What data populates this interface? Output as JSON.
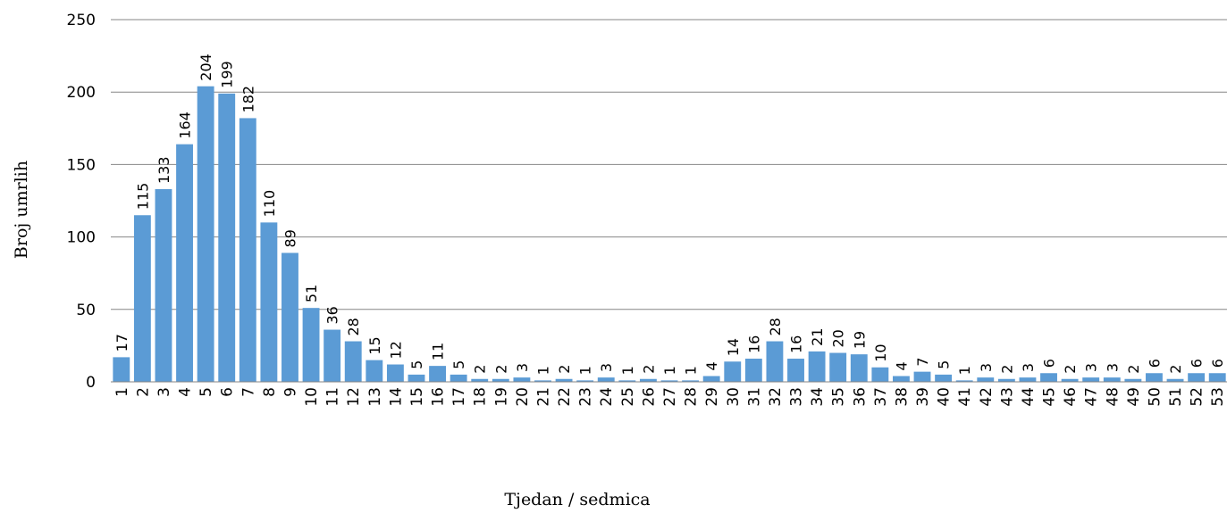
{
  "chart_data": {
    "type": "bar",
    "title": "",
    "xlabel": "Tjedan / sedmica",
    "ylabel": "Broj umrlih",
    "ylim": [
      0,
      250
    ],
    "yticks": [
      0,
      50,
      100,
      150,
      200,
      250
    ],
    "grid": true,
    "legend": "none",
    "bar_color": "#5B9BD5",
    "categories": [
      "1",
      "2",
      "3",
      "4",
      "5",
      "6",
      "7",
      "8",
      "9",
      "10",
      "11",
      "12",
      "13",
      "14",
      "15",
      "16",
      "17",
      "18",
      "19",
      "20",
      "21",
      "22",
      "23",
      "24",
      "25",
      "26",
      "27",
      "28",
      "29",
      "30",
      "31",
      "32",
      "33",
      "34",
      "35",
      "36",
      "37",
      "38",
      "39",
      "40",
      "41",
      "42",
      "43",
      "44",
      "45",
      "46",
      "47",
      "48",
      "49",
      "50",
      "51",
      "52",
      "53"
    ],
    "values": [
      17,
      115,
      133,
      164,
      204,
      199,
      182,
      110,
      89,
      51,
      36,
      28,
      15,
      12,
      5,
      11,
      5,
      2,
      2,
      3,
      1,
      2,
      1,
      3,
      1,
      2,
      1,
      1,
      4,
      14,
      16,
      28,
      16,
      21,
      20,
      19,
      10,
      4,
      7,
      5,
      1,
      3,
      2,
      3,
      6,
      2,
      3,
      3,
      2,
      6,
      2,
      6,
      6
    ]
  }
}
